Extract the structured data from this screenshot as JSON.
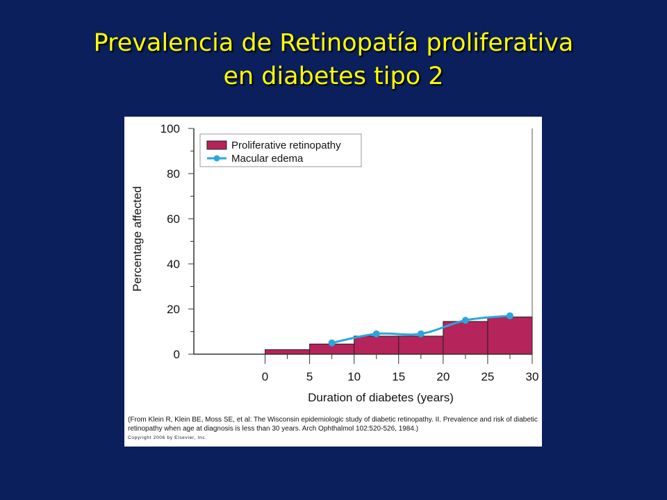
{
  "slide": {
    "title_line1": "Prevalencia de Retinopatía proliferativa",
    "title_line2": "en diabetes tipo 2"
  },
  "figure": {
    "caption": "(From Klein R, Klein BE, Moss SE, et al: The Wisconsin epidemiologic study of diabetic retinopathy. II. Prevalence and risk of diabetic retinopathy when age at diagnosis is less than 30 years. Arch Ophthalmol 102:520-526, 1984.)",
    "copyright": "Copyright 2006 by Elsevier, Inc."
  },
  "chart_data": {
    "type": "bar",
    "xlabel": "Duration of diabetes (years)",
    "ylabel": "Percentage affected",
    "xlim": [
      -8,
      30
    ],
    "ylim": [
      0,
      100
    ],
    "x_ticks": [
      0,
      5,
      10,
      15,
      20,
      25,
      30
    ],
    "y_ticks": [
      0,
      20,
      40,
      60,
      80,
      100
    ],
    "grid": false,
    "legend": "top-left",
    "series": [
      {
        "name": "Proliferative retinopathy",
        "type": "bar",
        "color": "#b5245a",
        "bins": [
          {
            "x0": 0,
            "x1": 5,
            "value": 2
          },
          {
            "x0": 5,
            "x1": 10,
            "value": 4.5
          },
          {
            "x0": 10,
            "x1": 15,
            "value": 8
          },
          {
            "x0": 15,
            "x1": 20,
            "value": 8
          },
          {
            "x0": 20,
            "x1": 25,
            "value": 14.5
          },
          {
            "x0": 25,
            "x1": 30,
            "value": 16.5
          }
        ]
      },
      {
        "name": "Macular edema",
        "type": "line",
        "color": "#29a6df",
        "points": [
          {
            "x": 7.5,
            "y": 5
          },
          {
            "x": 12.5,
            "y": 9
          },
          {
            "x": 17.5,
            "y": 9
          },
          {
            "x": 22.5,
            "y": 15
          },
          {
            "x": 27.5,
            "y": 17
          }
        ]
      }
    ]
  }
}
